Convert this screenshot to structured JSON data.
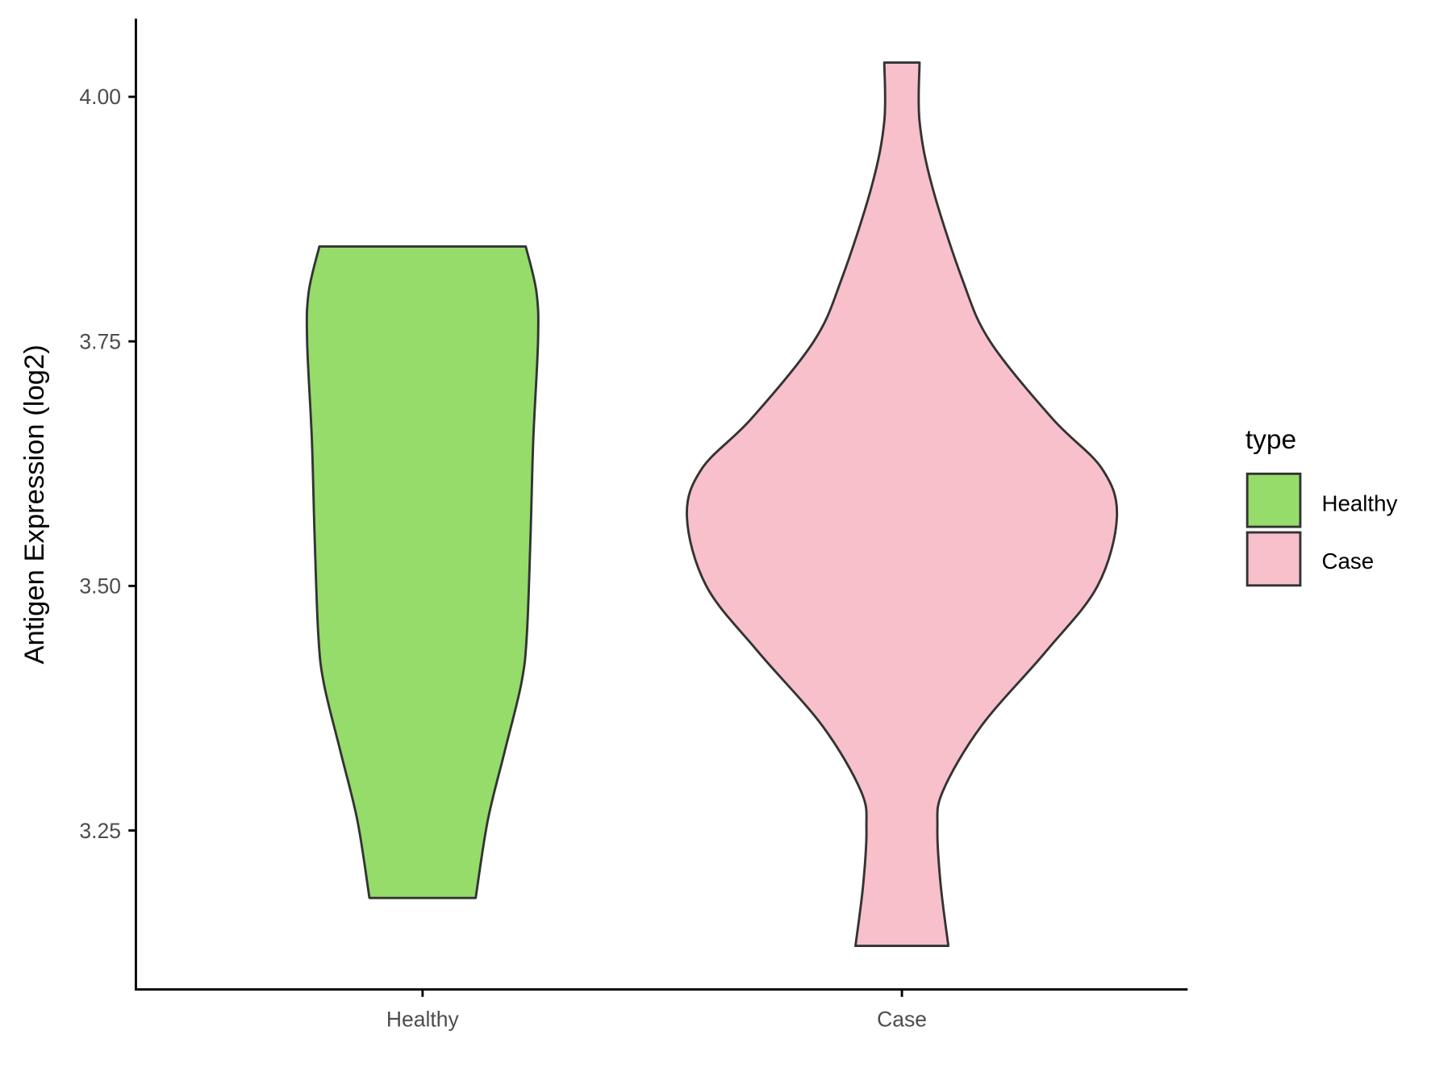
{
  "chart_data": {
    "type": "violin",
    "title": "",
    "xlabel": "",
    "ylabel": "Antigen Expression (log2)",
    "categories": [
      "Healthy",
      "Case"
    ],
    "ylim": [
      3.1,
      4.07
    ],
    "yticks": [
      3.25,
      3.5,
      3.75,
      4.0
    ],
    "ytick_labels": [
      "3.25",
      "3.50",
      "3.75",
      "4.00"
    ],
    "grid": false,
    "legend": {
      "title": "type",
      "position": "right",
      "entries": [
        "Healthy",
        "Case"
      ]
    },
    "colors": {
      "Healthy": "#95DC6A",
      "Case": "#F7C0CB",
      "outline": "#333333"
    },
    "series": [
      {
        "name": "Healthy",
        "min": 3.181,
        "max": 3.847,
        "density": [
          [
            3.847,
            0.48
          ],
          [
            3.8,
            0.53
          ],
          [
            3.75,
            0.537
          ],
          [
            3.65,
            0.515
          ],
          [
            3.55,
            0.502
          ],
          [
            3.45,
            0.485
          ],
          [
            3.4,
            0.459
          ],
          [
            3.33,
            0.381
          ],
          [
            3.26,
            0.303
          ],
          [
            3.181,
            0.247
          ]
        ]
      },
      {
        "name": "Case",
        "min": 3.132,
        "max": 4.035,
        "density": [
          [
            4.035,
            0.082
          ],
          [
            3.975,
            0.082
          ],
          [
            3.909,
            0.14
          ],
          [
            3.814,
            0.28
          ],
          [
            3.75,
            0.41
          ],
          [
            3.671,
            0.7
          ],
          [
            3.62,
            0.93
          ],
          [
            3.571,
            1.0
          ],
          [
            3.5,
            0.91
          ],
          [
            3.433,
            0.67
          ],
          [
            3.357,
            0.37
          ],
          [
            3.29,
            0.19
          ],
          [
            3.252,
            0.165
          ],
          [
            3.195,
            0.18
          ],
          [
            3.132,
            0.216
          ]
        ]
      }
    ]
  }
}
